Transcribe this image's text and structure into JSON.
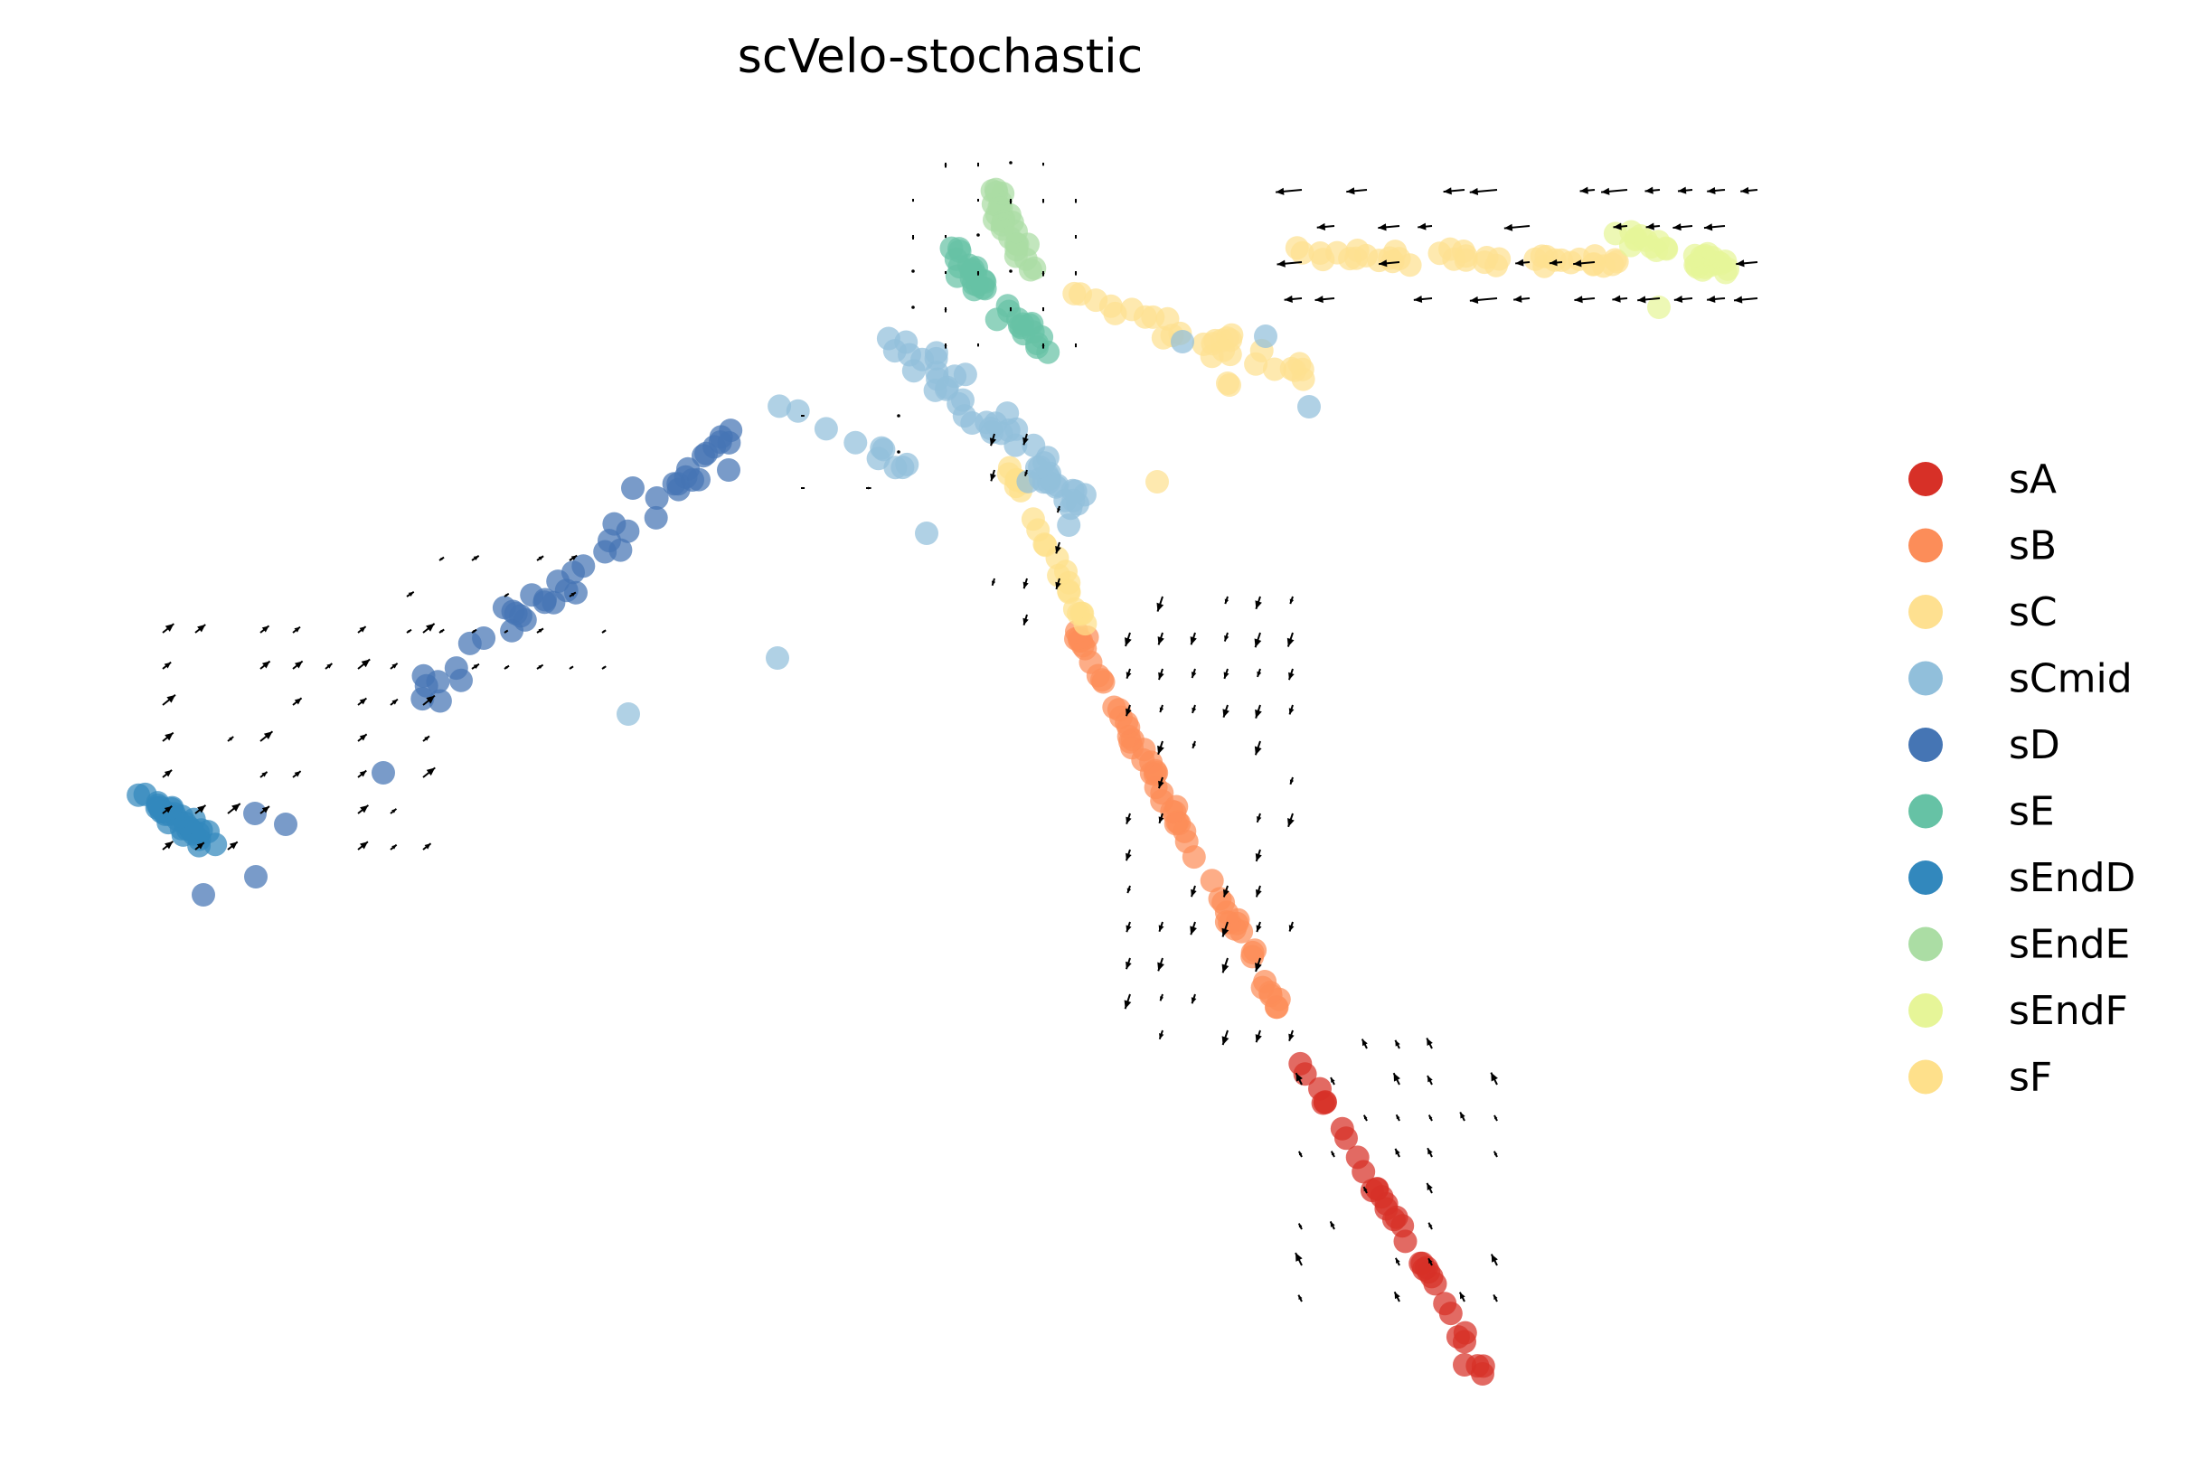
{
  "chart_data": {
    "type": "scatter",
    "title": "scVelo-stochastic",
    "xlabel": "",
    "ylabel": "",
    "grid": false,
    "axes_visible": false,
    "legend_position": "right",
    "overlay": "velocity vector field (quiver arrows)",
    "clusters": [
      {
        "name": "sA",
        "color": "#d73027"
      },
      {
        "name": "sB",
        "color": "#fc8d59"
      },
      {
        "name": "sC",
        "color": "#fee090"
      },
      {
        "name": "sCmid",
        "color": "#91bfdb"
      },
      {
        "name": "sD",
        "color": "#4575b4"
      },
      {
        "name": "sE",
        "color": "#66c2a5"
      },
      {
        "name": "sEndD",
        "color": "#3288bd"
      },
      {
        "name": "sEndE",
        "color": "#abdda4"
      },
      {
        "name": "sEndF",
        "color": "#e6f598"
      },
      {
        "name": "sF",
        "color": "#fee08b"
      }
    ]
  }
}
